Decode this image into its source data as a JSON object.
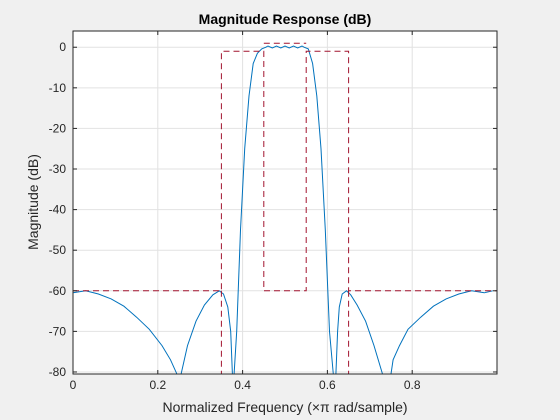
{
  "chart_data": {
    "type": "line",
    "title": "Magnitude Response (dB)",
    "xlabel": "Normalized Frequency (×π rad/sample)",
    "ylabel": "Magnitude (dB)",
    "xlim": [
      0,
      1
    ],
    "ylim": [
      -80.5,
      4
    ],
    "x_ticks": [
      0,
      0.2,
      0.4,
      0.6,
      0.8
    ],
    "x_tick_labels": [
      "0",
      "0.2",
      "0.4",
      "0.6",
      "0.8"
    ],
    "y_ticks": [
      0,
      -10,
      -20,
      -30,
      -40,
      -50,
      -60,
      -70,
      -80
    ],
    "y_tick_labels": [
      "0",
      "-10",
      "-20",
      "-30",
      "-40",
      "-50",
      "-60",
      "-70",
      "-80"
    ],
    "grid": true,
    "colors": {
      "response": "#0072BD",
      "mask": "#A2142F",
      "axes_bg": "#ffffff",
      "figure_bg": "#f0f0f0",
      "grid": "#e2e2e2"
    },
    "series": [
      {
        "style": "solid",
        "x": [
          0,
          0.03,
          0.06,
          0.09,
          0.12,
          0.15,
          0.18,
          0.21,
          0.23,
          0.245,
          0.25,
          0.255,
          0.27,
          0.29,
          0.31,
          0.33,
          0.345,
          0.355,
          0.365,
          0.372,
          0.376,
          0.38,
          0.386,
          0.395,
          0.405,
          0.415,
          0.425,
          0.435,
          0.445,
          0.455,
          0.46,
          0.47,
          0.48,
          0.49,
          0.5,
          0.51,
          0.52,
          0.53,
          0.54,
          0.545,
          0.555,
          0.565,
          0.575,
          0.585,
          0.595,
          0.605,
          0.614,
          0.62,
          0.624,
          0.628,
          0.635,
          0.645,
          0.655,
          0.67,
          0.69,
          0.71,
          0.73,
          0.745,
          0.75,
          0.755,
          0.77,
          0.79,
          0.82,
          0.85,
          0.88,
          0.91,
          0.94,
          0.97,
          0.99
        ],
        "y": [
          -60.5,
          -60,
          -60.8,
          -62,
          -63.8,
          -66.5,
          -69.5,
          -73.5,
          -77,
          -80.5,
          -82,
          -80.5,
          -73.5,
          -67.5,
          -63.5,
          -61,
          -60,
          -60.8,
          -64,
          -70,
          -80.5,
          -80.5,
          -70,
          -45,
          -25,
          -12,
          -4,
          -1.5,
          -0.4,
          0,
          0.3,
          -0.2,
          0.3,
          -0.2,
          0.3,
          -0.2,
          0.3,
          -0.2,
          0.3,
          0,
          -0.4,
          -4,
          -12,
          -25,
          -45,
          -70,
          -80.5,
          -80.5,
          -70,
          -64,
          -60.8,
          -60,
          -61,
          -63.5,
          -67.5,
          -73.5,
          -80.5,
          -82,
          -80.5,
          -77,
          -73.5,
          -69.5,
          -66.5,
          -63.8,
          -62,
          -60.8,
          -60,
          -60.5,
          -60
        ]
      },
      {
        "style": "dashed",
        "x": [
          0,
          0.35,
          0.35,
          0.45,
          0.45,
          0.55,
          0.55,
          0.65,
          0.65,
          1
        ],
        "y": [
          -60,
          -60,
          -1,
          -1,
          -60,
          -60,
          -1,
          -1,
          -60,
          -60
        ]
      },
      {
        "style": "dashed",
        "x": [
          0.45,
          0.55
        ],
        "y": [
          1,
          1
        ]
      },
      {
        "style": "dashed",
        "x": [
          0.35,
          0.35
        ],
        "y": [
          -60,
          -80.5
        ]
      },
      {
        "style": "dashed",
        "x": [
          0.65,
          0.65
        ],
        "y": [
          -60,
          -80.5
        ]
      }
    ]
  }
}
